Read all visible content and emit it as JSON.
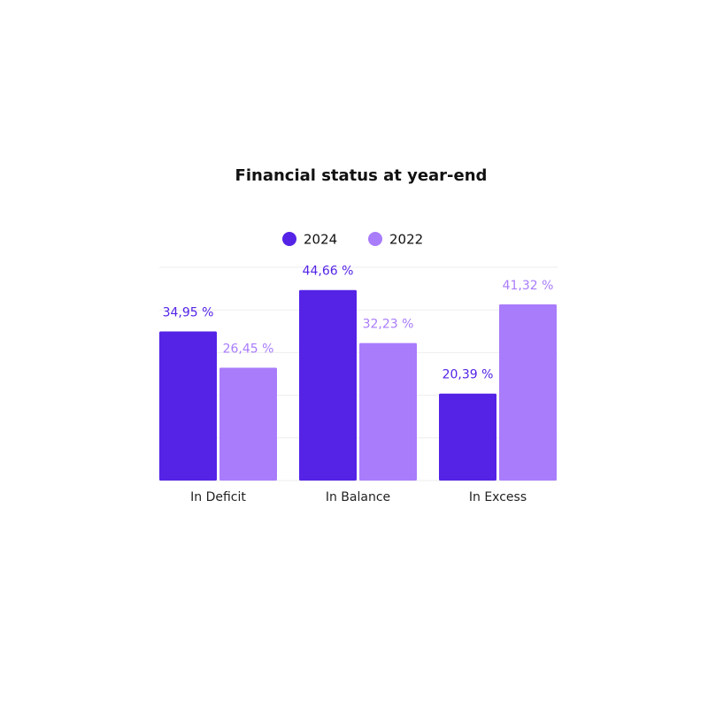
{
  "chart_data": {
    "type": "grouped-bar",
    "title": "Financial status at year-end",
    "categories": [
      "In Deficit",
      "In Balance",
      "In Excess"
    ],
    "series": [
      {
        "name": "2024",
        "color": "#5423e6",
        "values": [
          34.95,
          44.66,
          20.39
        ],
        "value_labels": [
          "34,95 %",
          "44,66 %",
          "20,39 %"
        ]
      },
      {
        "name": "2022",
        "color": "#a97cfb",
        "values": [
          26.45,
          32.23,
          41.32
        ],
        "value_labels": [
          "26,45 %",
          "32,23 %",
          "41,32 %"
        ]
      }
    ],
    "ylim": [
      0,
      50
    ],
    "yticks": [
      0,
      10,
      20,
      30,
      40,
      50
    ],
    "grid": true
  }
}
